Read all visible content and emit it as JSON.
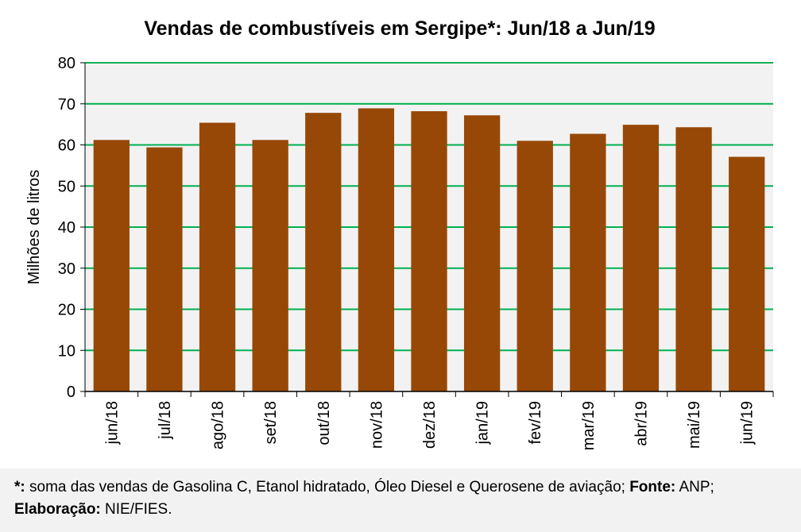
{
  "chart_data": {
    "type": "bar",
    "title": "Vendas de combustíveis em Sergipe*: Jun/18 a Jun/19",
    "ylabel": "Milhões de litros",
    "xlabel": "",
    "categories": [
      "jun/18",
      "jul/18",
      "ago/18",
      "set/18",
      "out/18",
      "nov/18",
      "dez/18",
      "jan/19",
      "fev/19",
      "mar/19",
      "abr/19",
      "mai/19",
      "jun/19"
    ],
    "values": [
      61.2,
      59.4,
      65.4,
      61.2,
      67.8,
      68.9,
      68.2,
      67.2,
      61.0,
      62.7,
      64.9,
      64.3,
      57.1
    ],
    "ylim": [
      0,
      80
    ],
    "yticks": [
      0,
      10,
      20,
      30,
      40,
      50,
      60,
      70,
      80
    ],
    "grid": true,
    "colors": {
      "bar": "#974806",
      "grid": "#00b050",
      "plot_bg": "#f2f2f2",
      "axis": "#000000"
    }
  },
  "footnote": {
    "line1_prefix": "*:",
    "line1_text": " soma das vendas de Gasolina C, Etanol hidratado, Óleo Diesel e Querosene de aviação; ",
    "source_label": "Fonte:",
    "source_value": " ANP;",
    "credit_label": "Elaboração:",
    "credit_value": " NIE/FIES."
  }
}
